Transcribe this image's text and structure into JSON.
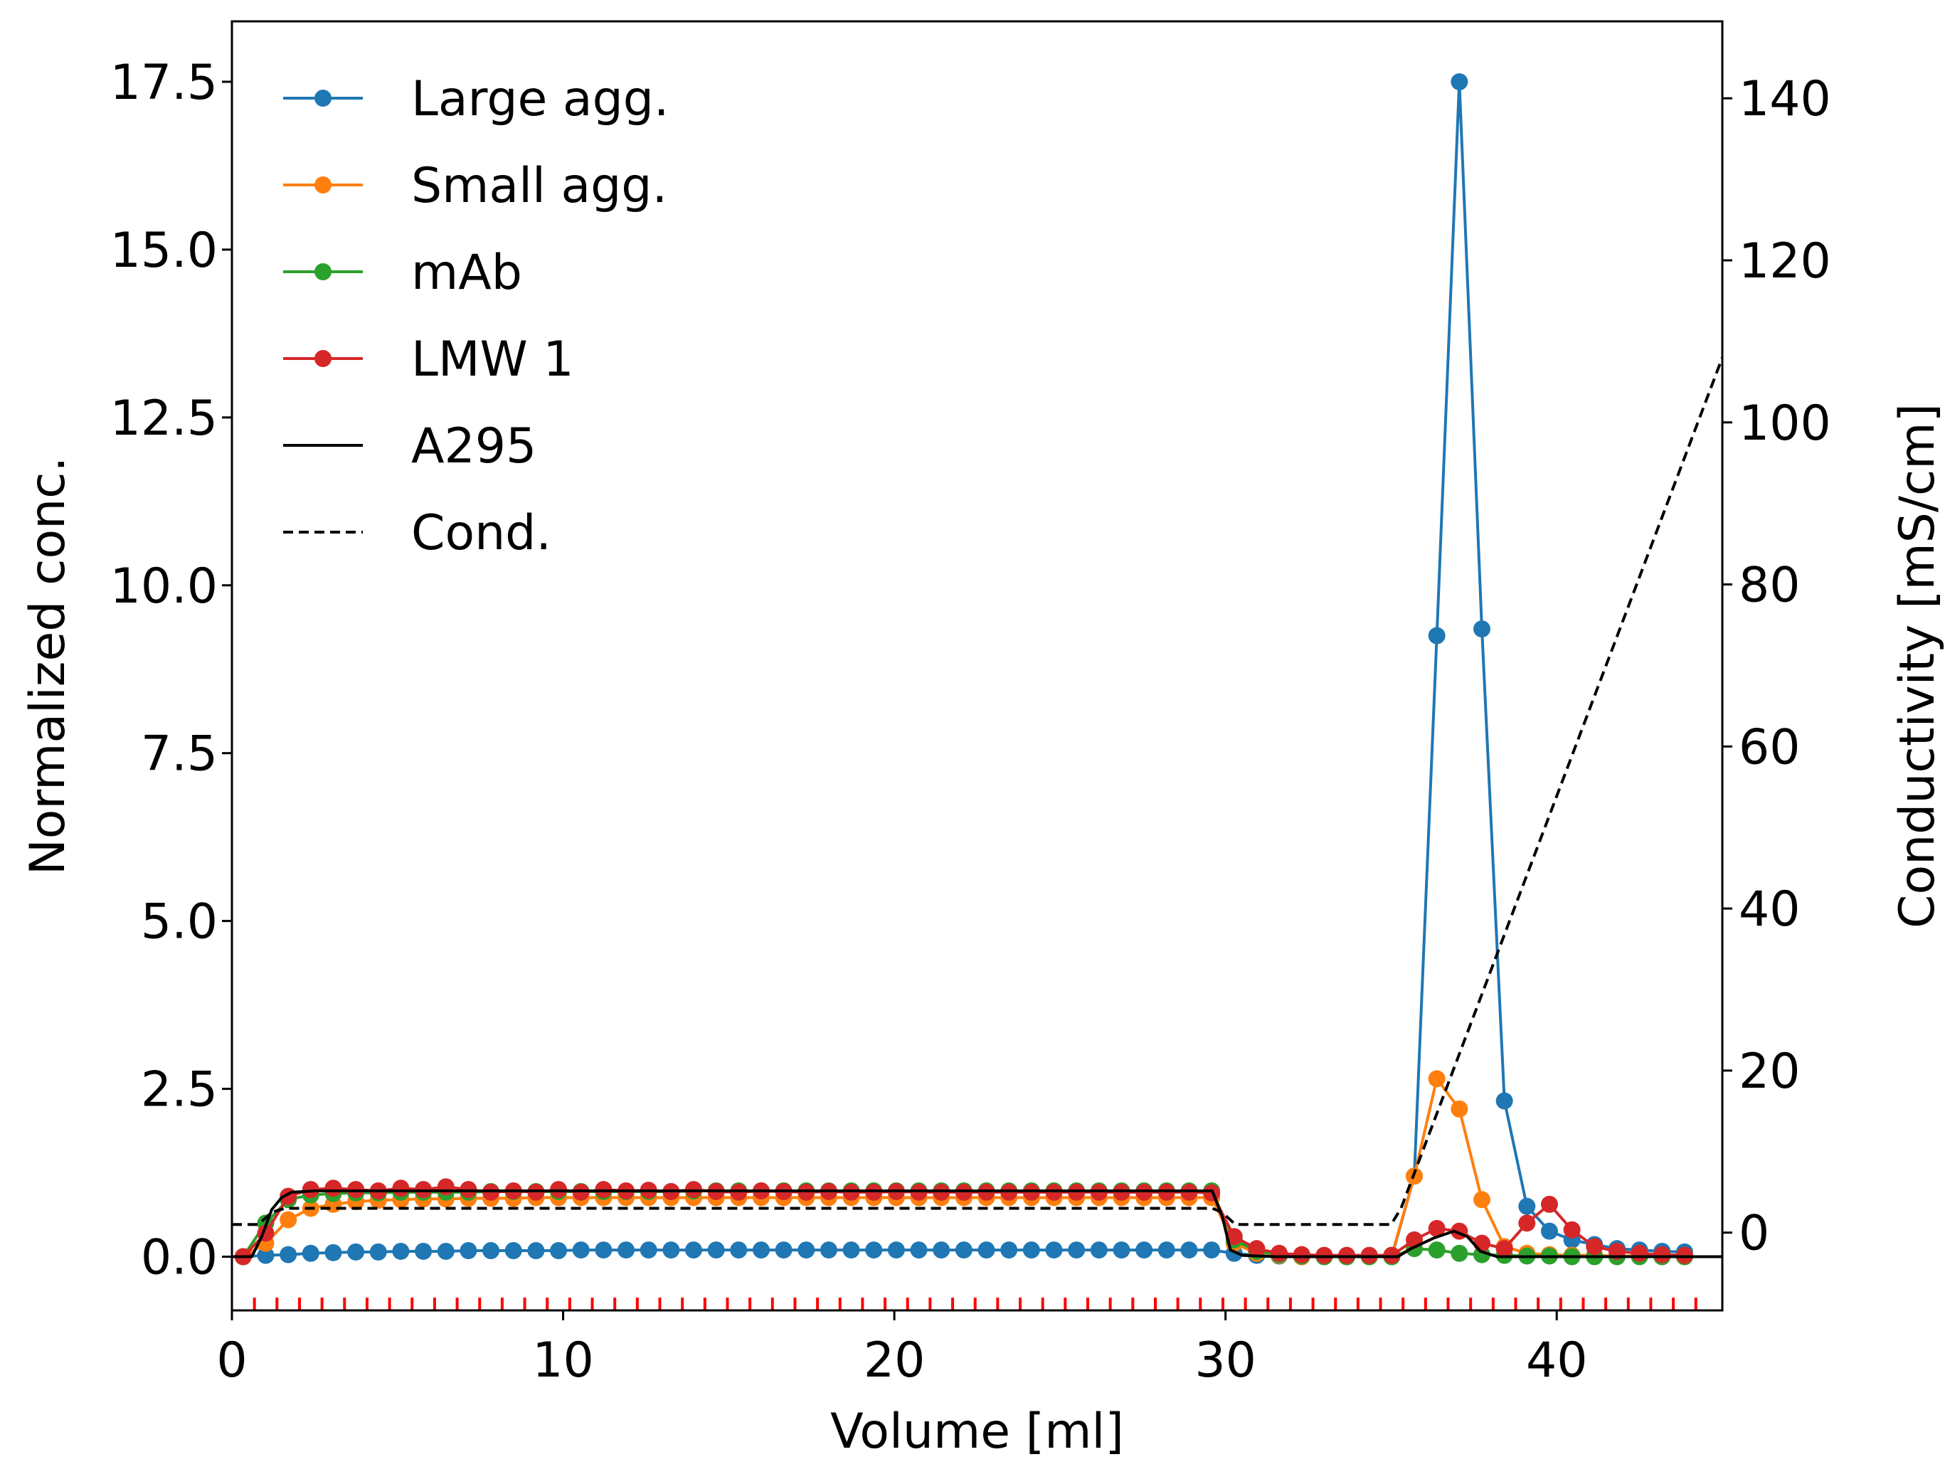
{
  "chart_data": {
    "type": "line",
    "xlabel": "Volume [ml]",
    "ylabel": "Normalized conc.",
    "y2label": "Conductivity [mS/cm]",
    "xlim": [
      0,
      45
    ],
    "ylim": [
      -0.8,
      18.4
    ],
    "y2lim": [
      -9.6,
      149.5
    ],
    "x_ticks": [
      "0",
      "10",
      "20",
      "30",
      "40"
    ],
    "y_ticks": [
      "0.0",
      "2.5",
      "5.0",
      "7.5",
      "10.0",
      "12.5",
      "15.0",
      "17.5"
    ],
    "y2_ticks": [
      "0",
      "20",
      "40",
      "60",
      "80",
      "100",
      "120",
      "140"
    ],
    "grid": false,
    "legend_position": "upper-left",
    "fraction_marker_color": "#ff0000",
    "fraction_marker_volumes": [
      0.68,
      1.36,
      2.04,
      2.72,
      3.4,
      4.08,
      4.76,
      5.44,
      6.12,
      6.8,
      7.48,
      8.16,
      8.84,
      9.52,
      10.2,
      10.88,
      11.56,
      12.24,
      12.92,
      13.6,
      14.28,
      14.96,
      15.64,
      16.32,
      17.0,
      17.68,
      18.36,
      19.04,
      19.72,
      20.4,
      21.08,
      21.76,
      22.44,
      23.12,
      23.8,
      24.48,
      25.16,
      25.84,
      26.52,
      27.2,
      27.88,
      28.56,
      29.24,
      29.92,
      30.6,
      31.28,
      31.96,
      32.64,
      33.32,
      34.0,
      34.68,
      35.36,
      36.04,
      36.72,
      37.4,
      38.08,
      38.76,
      39.44,
      40.12,
      40.8,
      41.48,
      42.16,
      42.84,
      43.52,
      44.2
    ],
    "series": [
      {
        "name": "Large agg.",
        "color": "#1f77b4",
        "marker": "circle",
        "axis": "left",
        "x": [
          0.34,
          1.02,
          1.7,
          2.38,
          3.06,
          3.74,
          4.42,
          5.1,
          5.78,
          6.46,
          7.14,
          7.82,
          8.5,
          9.18,
          9.86,
          10.54,
          11.22,
          11.9,
          12.58,
          13.26,
          13.94,
          14.62,
          15.3,
          15.98,
          16.66,
          17.34,
          18.02,
          18.7,
          19.38,
          20.06,
          20.74,
          21.42,
          22.1,
          22.78,
          23.46,
          24.14,
          24.82,
          25.5,
          26.18,
          26.86,
          27.54,
          28.22,
          28.9,
          29.58,
          30.26,
          30.94,
          31.62,
          32.3,
          32.98,
          33.66,
          34.34,
          35.02,
          35.7,
          36.38,
          37.06,
          37.74,
          38.42,
          39.1,
          39.78,
          40.46,
          41.14,
          41.82,
          42.5,
          43.18,
          43.86
        ],
        "values": [
          0.0,
          0.02,
          0.03,
          0.05,
          0.06,
          0.07,
          0.07,
          0.08,
          0.08,
          0.08,
          0.09,
          0.09,
          0.09,
          0.09,
          0.09,
          0.1,
          0.1,
          0.1,
          0.1,
          0.1,
          0.1,
          0.1,
          0.1,
          0.1,
          0.1,
          0.1,
          0.1,
          0.1,
          0.1,
          0.1,
          0.1,
          0.1,
          0.1,
          0.1,
          0.1,
          0.1,
          0.1,
          0.1,
          0.1,
          0.1,
          0.1,
          0.1,
          0.1,
          0.1,
          0.05,
          0.02,
          0.01,
          0.0,
          0.0,
          0.0,
          0.0,
          0.0,
          1.2,
          9.25,
          17.5,
          9.35,
          2.32,
          0.75,
          0.38,
          0.25,
          0.18,
          0.12,
          0.1,
          0.08,
          0.07
        ]
      },
      {
        "name": "Small agg.",
        "color": "#ff7f0e",
        "marker": "circle",
        "axis": "left",
        "x": [
          0.34,
          1.02,
          1.7,
          2.38,
          3.06,
          3.74,
          4.42,
          5.1,
          5.78,
          6.46,
          7.14,
          7.82,
          8.5,
          9.18,
          9.86,
          10.54,
          11.22,
          11.9,
          12.58,
          13.26,
          13.94,
          14.62,
          15.3,
          15.98,
          16.66,
          17.34,
          18.02,
          18.7,
          19.38,
          20.06,
          20.74,
          21.42,
          22.1,
          22.78,
          23.46,
          24.14,
          24.82,
          25.5,
          26.18,
          26.86,
          27.54,
          28.22,
          28.9,
          29.58,
          30.26,
          30.94,
          31.62,
          32.3,
          32.98,
          33.66,
          34.34,
          35.02,
          35.7,
          36.38,
          37.06,
          37.74,
          38.42,
          39.1,
          39.78,
          40.46,
          41.14,
          41.82,
          42.5,
          43.18,
          43.86
        ],
        "values": [
          0.0,
          0.2,
          0.55,
          0.72,
          0.78,
          0.82,
          0.84,
          0.85,
          0.86,
          0.86,
          0.87,
          0.87,
          0.87,
          0.88,
          0.88,
          0.88,
          0.88,
          0.88,
          0.88,
          0.88,
          0.88,
          0.88,
          0.88,
          0.88,
          0.88,
          0.88,
          0.88,
          0.88,
          0.88,
          0.88,
          0.88,
          0.88,
          0.88,
          0.88,
          0.88,
          0.88,
          0.88,
          0.88,
          0.88,
          0.88,
          0.88,
          0.88,
          0.88,
          0.88,
          0.2,
          0.05,
          0.02,
          0.0,
          0.0,
          0.0,
          0.0,
          0.02,
          1.2,
          2.65,
          2.2,
          0.85,
          0.15,
          0.05,
          0.03,
          0.02,
          0.02,
          0.01,
          0.01,
          0.0,
          0.0
        ]
      },
      {
        "name": "mAb",
        "color": "#2ca02c",
        "marker": "circle",
        "axis": "left",
        "x": [
          0.34,
          1.02,
          1.7,
          2.38,
          3.06,
          3.74,
          4.42,
          5.1,
          5.78,
          6.46,
          7.14,
          7.82,
          8.5,
          9.18,
          9.86,
          10.54,
          11.22,
          11.9,
          12.58,
          13.26,
          13.94,
          14.62,
          15.3,
          15.98,
          16.66,
          17.34,
          18.02,
          18.7,
          19.38,
          20.06,
          20.74,
          21.42,
          22.1,
          22.78,
          23.46,
          24.14,
          24.82,
          25.5,
          26.18,
          26.86,
          27.54,
          28.22,
          28.9,
          29.58,
          30.26,
          30.94,
          31.62,
          32.3,
          32.98,
          33.66,
          34.34,
          35.02,
          35.7,
          36.38,
          37.06,
          37.74,
          38.42,
          39.1,
          39.78,
          40.46,
          41.14,
          41.82,
          42.5,
          43.18,
          43.86
        ],
        "values": [
          0.0,
          0.5,
          0.85,
          0.92,
          0.94,
          0.95,
          0.95,
          0.96,
          0.96,
          0.96,
          0.96,
          0.97,
          0.97,
          0.97,
          0.97,
          0.97,
          0.97,
          0.97,
          0.97,
          0.97,
          0.98,
          0.98,
          0.98,
          0.98,
          0.98,
          0.98,
          0.98,
          0.98,
          0.98,
          0.98,
          0.98,
          0.98,
          0.98,
          0.98,
          0.98,
          0.98,
          0.98,
          0.98,
          0.98,
          0.98,
          0.98,
          0.98,
          0.98,
          0.98,
          0.25,
          0.08,
          0.03,
          0.01,
          0.0,
          0.0,
          0.0,
          0.0,
          0.12,
          0.1,
          0.05,
          0.03,
          0.02,
          0.01,
          0.01,
          0.0,
          0.0,
          0.0,
          0.0,
          0.0,
          0.0
        ]
      },
      {
        "name": "LMW 1",
        "color": "#d62728",
        "marker": "circle",
        "axis": "left",
        "x": [
          0.34,
          1.02,
          1.7,
          2.38,
          3.06,
          3.74,
          4.42,
          5.1,
          5.78,
          6.46,
          7.14,
          7.82,
          8.5,
          9.18,
          9.86,
          10.54,
          11.22,
          11.9,
          12.58,
          13.26,
          13.94,
          14.62,
          15.3,
          15.98,
          16.66,
          17.34,
          18.02,
          18.7,
          19.38,
          20.06,
          20.74,
          21.42,
          22.1,
          22.78,
          23.46,
          24.14,
          24.82,
          25.5,
          26.18,
          26.86,
          27.54,
          28.22,
          28.9,
          29.58,
          30.26,
          30.94,
          31.62,
          32.3,
          32.98,
          33.66,
          34.34,
          35.02,
          35.7,
          36.38,
          37.06,
          37.74,
          38.42,
          39.1,
          39.78,
          40.46,
          41.14,
          41.82,
          42.5,
          43.18,
          43.86
        ],
        "values": [
          0.0,
          0.35,
          0.9,
          1.0,
          1.02,
          1.0,
          0.98,
          1.02,
          1.0,
          1.04,
          1.0,
          0.96,
          0.98,
          0.96,
          1.0,
          0.96,
          1.0,
          0.98,
          0.99,
          0.97,
          1.0,
          0.97,
          0.96,
          0.98,
          0.97,
          0.96,
          0.97,
          0.96,
          0.96,
          0.97,
          0.96,
          0.96,
          0.96,
          0.96,
          0.96,
          0.96,
          0.96,
          0.96,
          0.96,
          0.96,
          0.96,
          0.96,
          0.96,
          0.95,
          0.3,
          0.12,
          0.05,
          0.03,
          0.02,
          0.02,
          0.02,
          0.02,
          0.25,
          0.42,
          0.38,
          0.2,
          0.12,
          0.5,
          0.78,
          0.4,
          0.15,
          0.08,
          0.05,
          0.03,
          0.02
        ]
      },
      {
        "name": "A295",
        "color": "#000000",
        "marker": "none",
        "axis": "left",
        "line_style": "solid",
        "x": [
          0,
          0.6,
          0.9,
          1.2,
          1.5,
          1.8,
          2.5,
          29.6,
          29.9,
          30.15,
          30.5,
          31.5,
          35.2,
          35.6,
          36.3,
          36.9,
          37.3,
          37.7,
          38.2,
          40,
          45
        ],
        "values": [
          0.0,
          0.0,
          0.3,
          0.7,
          0.88,
          0.96,
          0.98,
          0.98,
          0.6,
          0.1,
          0.02,
          0.0,
          0.0,
          0.12,
          0.28,
          0.38,
          0.3,
          0.08,
          0.0,
          0.0,
          0.0
        ]
      },
      {
        "name": "Cond.",
        "color": "#000000",
        "marker": "none",
        "axis": "right",
        "line_style": "dashed",
        "x": [
          0,
          0.8,
          1.2,
          1.6,
          29.6,
          29.9,
          30.3,
          35.0,
          35.3,
          45
        ],
        "values": [
          1.0,
          1.0,
          2.5,
          3.0,
          3.0,
          2.5,
          1.0,
          1.0,
          3.0,
          108.0
        ]
      }
    ]
  }
}
